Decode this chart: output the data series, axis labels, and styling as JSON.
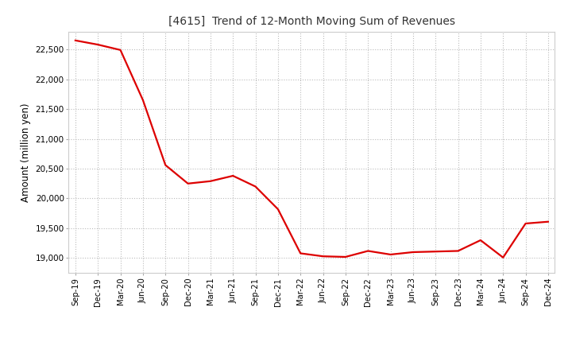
{
  "title": "[4615]  Trend of 12-Month Moving Sum of Revenues",
  "ylabel": "Amount (million yen)",
  "line_color": "#dd0000",
  "background_color": "#ffffff",
  "plot_bg_color": "#ffffff",
  "grid_color": "#bbbbbb",
  "ylim": [
    18750,
    22800
  ],
  "yticks": [
    19000,
    19500,
    20000,
    20500,
    21000,
    21500,
    22000,
    22500
  ],
  "x_labels": [
    "Sep-19",
    "Dec-19",
    "Mar-20",
    "Jun-20",
    "Sep-20",
    "Dec-20",
    "Mar-21",
    "Jun-21",
    "Sep-21",
    "Dec-21",
    "Mar-22",
    "Jun-22",
    "Sep-22",
    "Dec-22",
    "Mar-23",
    "Jun-23",
    "Sep-23",
    "Dec-23",
    "Mar-24",
    "Jun-24",
    "Sep-24",
    "Dec-24"
  ],
  "values": [
    22650,
    22580,
    22490,
    21650,
    20560,
    20250,
    20290,
    20380,
    20200,
    19820,
    19080,
    19030,
    19020,
    19120,
    19060,
    19100,
    19110,
    19120,
    19300,
    19010,
    19580,
    19610
  ]
}
